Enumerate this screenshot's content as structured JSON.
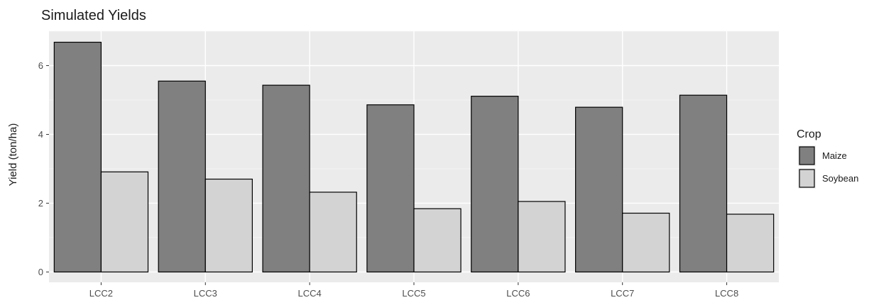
{
  "chart_data": {
    "type": "bar",
    "title": "Simulated Yields",
    "xlabel": "",
    "ylabel": "Yield (ton/ha)",
    "categories": [
      "LCC2",
      "LCC3",
      "LCC4",
      "LCC5",
      "LCC6",
      "LCC7",
      "LCC8"
    ],
    "series": [
      {
        "name": "Maize",
        "color": "#808080",
        "values": [
          6.68,
          5.55,
          5.43,
          4.86,
          5.11,
          4.79,
          5.14
        ]
      },
      {
        "name": "Soybean",
        "color": "#d3d3d3",
        "values": [
          2.91,
          2.7,
          2.32,
          1.84,
          2.05,
          1.71,
          1.68
        ]
      }
    ],
    "ylim": [
      -0.3,
      7.0
    ],
    "yticks": [
      0,
      2,
      4,
      6
    ],
    "grid": true,
    "legend": {
      "title": "Crop",
      "position": "right"
    }
  }
}
